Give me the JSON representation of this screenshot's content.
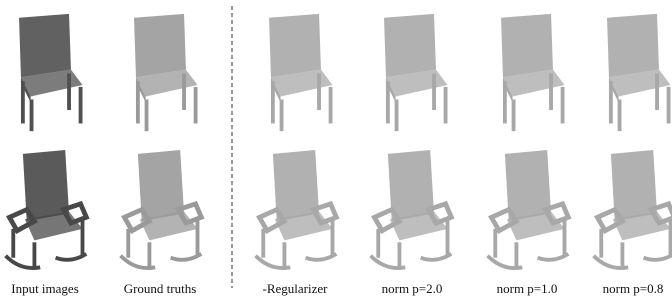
{
  "figure": {
    "columns": [
      "Input images",
      "Ground truths",
      "-Regularizer",
      "norm p=2.0",
      "norm p=1.0",
      "norm p=0.8"
    ]
  }
}
